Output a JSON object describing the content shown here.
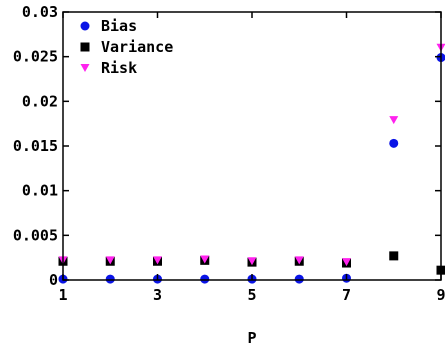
{
  "chart_data": {
    "type": "scatter",
    "xlabel": "P",
    "ylabel": "",
    "xlim": [
      1,
      9
    ],
    "ylim": [
      0,
      0.03
    ],
    "x_ticks": [
      "1",
      "3",
      "5",
      "7",
      "9"
    ],
    "y_ticks": [
      "0",
      "0.005",
      "0.01",
      "0.015",
      "0.02",
      "0.025",
      "0.03"
    ],
    "legend_position": "top-left",
    "grid": false,
    "x": [
      1,
      2,
      3,
      4,
      5,
      6,
      7,
      8,
      9
    ],
    "series": [
      {
        "name": "Bias",
        "marker": "circle",
        "color": "#0a14e6",
        "values": [
          0.0001,
          0.0001,
          0.0001,
          0.0001,
          0.0001,
          0.0001,
          0.0002,
          0.0153,
          0.0249
        ]
      },
      {
        "name": "Variance",
        "marker": "square",
        "color": "#000000",
        "values": [
          0.0021,
          0.0021,
          0.0021,
          0.0022,
          0.002,
          0.0021,
          0.0019,
          0.0027,
          0.0011
        ]
      },
      {
        "name": "Risk",
        "marker": "triangle-down",
        "color": "#ff22ee",
        "values": [
          0.0022,
          0.0022,
          0.0022,
          0.0023,
          0.0021,
          0.0022,
          0.002,
          0.0179,
          0.026
        ]
      }
    ]
  }
}
